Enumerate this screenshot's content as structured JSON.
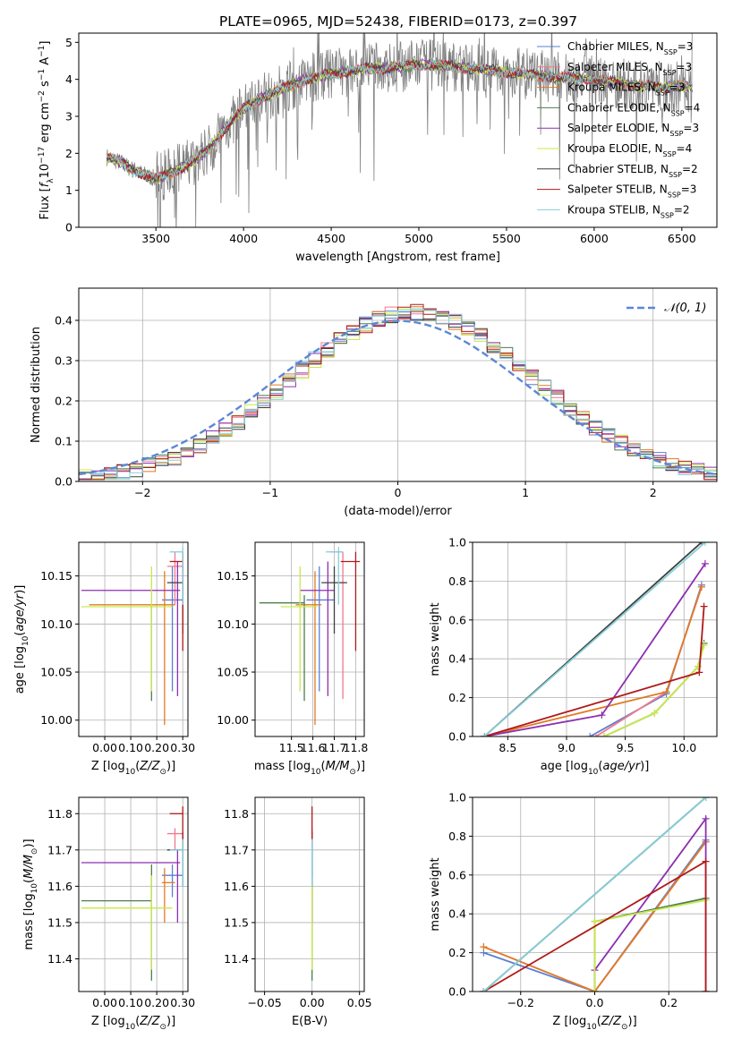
{
  "title": "PLATE=0965, MJD=52438, FIBERID=0173, z=0.397",
  "colors": {
    "chabrier_miles": "#5b7fd0",
    "salpeter_miles": "#ee7a8e",
    "kroupa_miles": "#e07b24",
    "chabrier_elodie": "#4f7d4f",
    "salpeter_elodie": "#8e2fb0",
    "kroupa_elodie": "#c8e94a",
    "chabrier_stelib": "#3f3f3f",
    "salpeter_stelib": "#b01a1a",
    "kroupa_stelib": "#86d0d9",
    "normal_curve": "#5b87d6"
  },
  "legend_spectrum": [
    {
      "label": "Chabrier MILES, N",
      "sub": "SSP",
      "suffix": "=3",
      "color": "#5b7fd0"
    },
    {
      "label": "Salpeter MILES, N",
      "sub": "SSP",
      "suffix": "=3",
      "color": "#ee7a8e"
    },
    {
      "label": "Kroupa MILES, N",
      "sub": "SSP",
      "suffix": "=3",
      "color": "#e07b24"
    },
    {
      "label": "Chabrier ELODIE, N",
      "sub": "SSP",
      "suffix": "=4",
      "color": "#4f7d4f"
    },
    {
      "label": "Salpeter ELODIE, N",
      "sub": "SSP",
      "suffix": "=3",
      "color": "#8e2fb0"
    },
    {
      "label": "Kroupa ELODIE, N",
      "sub": "SSP",
      "suffix": "=4",
      "color": "#c8e94a"
    },
    {
      "label": "Chabrier STELIB, N",
      "sub": "SSP",
      "suffix": "=2",
      "color": "#3f3f3f"
    },
    {
      "label": "Salpeter STELIB, N",
      "sub": "SSP",
      "suffix": "=3",
      "color": "#b01a1a"
    },
    {
      "label": "Kroupa STELIB, N",
      "sub": "SSP",
      "suffix": "=2",
      "color": "#86d0d9"
    }
  ],
  "legend_hist": "𝒩(0, 1)",
  "chart_data": [
    {
      "id": "spectrum",
      "type": "line",
      "xlabel": "wavelength [Angstrom, rest frame]",
      "ylabel": "Flux [f_λ 10^-17 erg cm^-2 s^-1 A^-1]",
      "xlim": [
        3060,
        6700
      ],
      "ylim": [
        0,
        5.25
      ],
      "xticks": [
        3500,
        4000,
        4500,
        5000,
        5500,
        6000,
        6500
      ],
      "yticks": [
        0,
        1,
        2,
        3,
        4,
        5
      ],
      "grid": false,
      "continuum": {
        "x": [
          3220,
          3300,
          3350,
          3420,
          3500,
          3600,
          3700,
          3800,
          3900,
          4000,
          4100,
          4200,
          4300,
          4400,
          4500,
          4600,
          4700,
          4800,
          4900,
          5000,
          5200,
          5400,
          5600,
          5800,
          6000,
          6200,
          6400,
          6550
        ],
        "y": [
          1.9,
          1.75,
          1.6,
          1.45,
          1.3,
          1.5,
          1.75,
          2.1,
          2.7,
          3.2,
          3.5,
          3.7,
          3.9,
          4.05,
          4.15,
          4.2,
          4.3,
          4.3,
          4.35,
          4.4,
          4.35,
          4.25,
          4.15,
          4.05,
          4.0,
          3.85,
          3.8,
          3.8
        ]
      }
    },
    {
      "id": "residuals",
      "type": "step",
      "xlabel": "(data-model)/error",
      "ylabel": "Normed distribution",
      "xlim": [
        -2.5,
        2.5
      ],
      "ylim": [
        0,
        0.48
      ],
      "xticks": [
        -2,
        -1,
        0,
        1,
        2
      ],
      "yticks": [
        0.0,
        0.1,
        0.2,
        0.3,
        0.4
      ],
      "grid": true,
      "bin_width": 0.1,
      "curve": "normal(0,1)"
    },
    {
      "id": "age_vs_Z",
      "type": "errorbar",
      "xlabel": "Z [log10(Z/Z⊙)]",
      "ylabel": "age [log10(age/yr)]",
      "xlim": [
        -0.1,
        0.32
      ],
      "ylim": [
        9.983,
        10.185
      ],
      "xticks": [
        0.0,
        0.1,
        0.2,
        0.3
      ],
      "yticks": [
        10.0,
        10.05,
        10.1,
        10.15
      ],
      "grid": true,
      "points": [
        {
          "model": "chabrier_miles",
          "x": 0.26,
          "xlo": 0.22,
          "xhi": 0.3,
          "y": 10.125,
          "ylo": 10.03,
          "yhi": 10.16
        },
        {
          "model": "salpeter_miles",
          "x": 0.27,
          "xlo": 0.24,
          "xhi": 0.3,
          "y": 10.16,
          "ylo": 10.12,
          "yhi": 10.175
        },
        {
          "model": "kroupa_miles",
          "x": 0.23,
          "xlo": -0.06,
          "xhi": 0.27,
          "y": 10.12,
          "ylo": 9.995,
          "yhi": 10.155
        },
        {
          "model": "chabrier_elodie",
          "x": 0.18,
          "xlo": 0.18,
          "xhi": 0.18,
          "y": 10.11,
          "ylo": 10.02,
          "yhi": 10.12
        },
        {
          "model": "salpeter_elodie",
          "x": 0.28,
          "xlo": -0.09,
          "xhi": 0.29,
          "y": 10.135,
          "ylo": 10.025,
          "yhi": 10.165
        },
        {
          "model": "kroupa_elodie",
          "x": 0.18,
          "xlo": -0.09,
          "xhi": 0.26,
          "y": 10.118,
          "ylo": 10.03,
          "yhi": 10.16
        },
        {
          "model": "chabrier_stelib",
          "x": 0.3,
          "xlo": 0.24,
          "xhi": 0.3,
          "y": 10.143,
          "ylo": 10.09,
          "yhi": 10.16
        },
        {
          "model": "salpeter_stelib",
          "x": 0.3,
          "xlo": 0.25,
          "xhi": 0.3,
          "y": 10.165,
          "ylo": 10.072,
          "yhi": 10.175
        },
        {
          "model": "kroupa_stelib",
          "x": 0.3,
          "xlo": 0.25,
          "xhi": 0.3,
          "y": 10.175,
          "ylo": 10.12,
          "yhi": 10.18
        }
      ]
    },
    {
      "id": "age_vs_mass",
      "type": "errorbar",
      "xlabel": "mass [log10(M/M⊙)]",
      "ylabel": "",
      "xlim": [
        11.33,
        11.84
      ],
      "ylim": [
        9.983,
        10.185
      ],
      "xticks": [
        11.5,
        11.6,
        11.7,
        11.8
      ],
      "yticks": [
        10.0,
        10.05,
        10.1,
        10.15
      ],
      "grid": true,
      "points": [
        {
          "model": "chabrier_miles",
          "x": 11.63,
          "xlo": 11.57,
          "xhi": 11.7,
          "y": 10.125,
          "ylo": 10.03,
          "yhi": 10.16
        },
        {
          "model": "salpeter_miles",
          "x": 11.74,
          "xlo": 11.68,
          "xhi": 11.74,
          "y": 10.175,
          "ylo": 10.022,
          "yhi": 10.175
        },
        {
          "model": "kroupa_miles",
          "x": 11.61,
          "xlo": 11.52,
          "xhi": 11.64,
          "y": 10.12,
          "ylo": 9.995,
          "yhi": 10.155
        },
        {
          "model": "chabrier_elodie",
          "x": 11.56,
          "xlo": 11.35,
          "xhi": 11.56,
          "y": 10.122,
          "ylo": 10.02,
          "yhi": 10.13
        },
        {
          "model": "salpeter_elodie",
          "x": 11.67,
          "xlo": 11.54,
          "xhi": 11.7,
          "y": 10.135,
          "ylo": 10.025,
          "yhi": 10.165
        },
        {
          "model": "kroupa_elodie",
          "x": 11.54,
          "xlo": 11.45,
          "xhi": 11.62,
          "y": 10.118,
          "ylo": 10.03,
          "yhi": 10.16
        },
        {
          "model": "chabrier_stelib",
          "x": 11.7,
          "xlo": 11.64,
          "xhi": 11.76,
          "y": 10.143,
          "ylo": 10.09,
          "yhi": 10.16
        },
        {
          "model": "salpeter_stelib",
          "x": 11.8,
          "xlo": 11.73,
          "xhi": 11.82,
          "y": 10.165,
          "ylo": 10.072,
          "yhi": 10.175
        },
        {
          "model": "kroupa_stelib",
          "x": 11.72,
          "xlo": 11.66,
          "xhi": 11.74,
          "y": 10.175,
          "ylo": 10.12,
          "yhi": 10.18
        }
      ]
    },
    {
      "id": "weight_vs_age",
      "type": "line",
      "xlabel": "age [log10(age/yr)]",
      "ylabel": "mass weight",
      "xlim": [
        8.2,
        10.28
      ],
      "ylim": [
        0,
        1.0
      ],
      "xticks": [
        8.5,
        9.0,
        9.5,
        10.0
      ],
      "yticks": [
        0.0,
        0.2,
        0.4,
        0.6,
        0.8,
        1.0
      ],
      "grid": true,
      "series": [
        {
          "model": "chabrier_miles",
          "x": [
            9.2,
            9.85,
            10.15
          ],
          "y": [
            0.0,
            0.22,
            0.78
          ]
        },
        {
          "model": "salpeter_miles",
          "x": [
            9.25,
            9.85,
            10.15
          ],
          "y": [
            0.0,
            0.23,
            0.77
          ]
        },
        {
          "model": "kroupa_miles",
          "x": [
            8.3,
            9.85,
            10.15
          ],
          "y": [
            0.0,
            0.23,
            0.77
          ]
        },
        {
          "model": "chabrier_elodie",
          "x": [
            9.32,
            9.75,
            10.12,
            10.17
          ],
          "y": [
            0.0,
            0.12,
            0.36,
            0.48
          ]
        },
        {
          "model": "salpeter_elodie",
          "x": [
            8.3,
            9.3,
            10.18
          ],
          "y": [
            0.0,
            0.11,
            0.89
          ]
        },
        {
          "model": "kroupa_elodie",
          "x": [
            9.32,
            9.75,
            10.12,
            10.17
          ],
          "y": [
            0.0,
            0.12,
            0.36,
            0.47
          ]
        },
        {
          "model": "chabrier_stelib",
          "x": [
            8.3,
            10.15
          ],
          "y": [
            0.0,
            1.0
          ]
        },
        {
          "model": "salpeter_stelib",
          "x": [
            8.3,
            10.13,
            10.17
          ],
          "y": [
            0.0,
            0.33,
            0.67
          ]
        },
        {
          "model": "kroupa_stelib",
          "x": [
            8.3,
            10.18
          ],
          "y": [
            0.0,
            1.0
          ]
        }
      ]
    },
    {
      "id": "mass_vs_Z",
      "type": "errorbar",
      "xlabel": "Z [log10(Z/Z⊙)]",
      "ylabel": "mass [log10(M/M⊙)]",
      "xlim": [
        -0.1,
        0.32
      ],
      "ylim": [
        11.31,
        11.845
      ],
      "xticks": [
        0.0,
        0.1,
        0.2,
        0.3
      ],
      "yticks": [
        11.4,
        11.5,
        11.6,
        11.7,
        11.8
      ],
      "grid": true,
      "points": [
        {
          "model": "chabrier_miles",
          "x": 0.26,
          "xlo": 0.22,
          "xhi": 0.3,
          "y": 11.63,
          "ylo": 11.57,
          "yhi": 11.66
        },
        {
          "model": "salpeter_miles",
          "x": 0.27,
          "xlo": 0.24,
          "xhi": 0.3,
          "y": 11.745,
          "ylo": 11.7,
          "yhi": 11.76
        },
        {
          "model": "kroupa_miles",
          "x": 0.23,
          "xlo": 0.22,
          "xhi": 0.27,
          "y": 11.61,
          "ylo": 11.5,
          "yhi": 11.65
        },
        {
          "model": "chabrier_elodie",
          "x": 0.18,
          "xlo": -0.09,
          "xhi": 0.18,
          "y": 11.56,
          "ylo": 11.34,
          "yhi": 11.66
        },
        {
          "model": "salpeter_elodie",
          "x": 0.28,
          "xlo": -0.09,
          "xhi": 0.29,
          "y": 11.665,
          "ylo": 11.5,
          "yhi": 11.7
        },
        {
          "model": "kroupa_elodie",
          "x": 0.18,
          "xlo": -0.09,
          "xhi": 0.26,
          "y": 11.54,
          "ylo": 11.37,
          "yhi": 11.63
        },
        {
          "model": "chabrier_stelib",
          "x": 0.3,
          "xlo": 0.24,
          "xhi": 0.3,
          "y": 11.7,
          "ylo": 11.6,
          "yhi": 11.75
        },
        {
          "model": "salpeter_stelib",
          "x": 0.3,
          "xlo": 0.25,
          "xhi": 0.3,
          "y": 11.8,
          "ylo": 11.72,
          "yhi": 11.82
        },
        {
          "model": "kroupa_stelib",
          "x": 0.3,
          "xlo": 0.25,
          "xhi": 0.3,
          "y": 11.7,
          "ylo": 11.6,
          "yhi": 11.73
        }
      ]
    },
    {
      "id": "mass_vs_ebv",
      "type": "errorbar",
      "xlabel": "E(B-V)",
      "ylabel": "",
      "xlim": [
        -0.06,
        0.055
      ],
      "ylim": [
        11.31,
        11.845
      ],
      "xticks": [
        -0.05,
        0.0,
        0.05
      ],
      "yticks": [
        11.4,
        11.5,
        11.6,
        11.7,
        11.8
      ],
      "grid": true,
      "points": [
        {
          "model": "chabrier_miles",
          "x": 0.0,
          "xlo": 0.0,
          "xhi": 0.0,
          "y": 11.63,
          "ylo": 11.57,
          "yhi": 11.66
        },
        {
          "model": "salpeter_miles",
          "x": 0.0,
          "xlo": 0.0,
          "xhi": 0.0,
          "y": 11.745,
          "ylo": 11.7,
          "yhi": 11.76
        },
        {
          "model": "kroupa_miles",
          "x": 0.0,
          "xlo": 0.0,
          "xhi": 0.0,
          "y": 11.61,
          "ylo": 11.5,
          "yhi": 11.65
        },
        {
          "model": "chabrier_elodie",
          "x": 0.0,
          "xlo": 0.0,
          "xhi": 0.0,
          "y": 11.56,
          "ylo": 11.34,
          "yhi": 11.66
        },
        {
          "model": "salpeter_elodie",
          "x": 0.0,
          "xlo": 0.0,
          "xhi": 0.0,
          "y": 11.665,
          "ylo": 11.5,
          "yhi": 11.7
        },
        {
          "model": "kroupa_elodie",
          "x": 0.0,
          "xlo": 0.0,
          "xhi": 0.0,
          "y": 11.54,
          "ylo": 11.37,
          "yhi": 11.63
        },
        {
          "model": "chabrier_stelib",
          "x": 0.0,
          "xlo": 0.0,
          "xhi": 0.0,
          "y": 11.7,
          "ylo": 11.6,
          "yhi": 11.75
        },
        {
          "model": "salpeter_stelib",
          "x": 0.0,
          "xlo": 0.0,
          "xhi": 0.0,
          "y": 11.8,
          "ylo": 11.72,
          "yhi": 11.82
        },
        {
          "model": "kroupa_stelib",
          "x": 0.0,
          "xlo": 0.0,
          "xhi": 0.0,
          "y": 11.7,
          "ylo": 11.6,
          "yhi": 11.73
        }
      ]
    },
    {
      "id": "weight_vs_Z",
      "type": "line",
      "xlabel": "Z [log10(Z/Z⊙)]",
      "ylabel": "mass weight",
      "xlim": [
        -0.33,
        0.33
      ],
      "ylim": [
        0,
        1.0
      ],
      "xticks": [
        -0.2,
        0.0,
        0.2
      ],
      "yticks": [
        0.0,
        0.2,
        0.4,
        0.6,
        0.8,
        1.0
      ],
      "grid": true,
      "series": [
        {
          "model": "chabrier_miles",
          "x": [
            -0.3,
            0.0,
            0.3
          ],
          "y": [
            0.2,
            0.0,
            0.78
          ]
        },
        {
          "model": "salpeter_miles",
          "x": [
            -0.3,
            0.0,
            0.3
          ],
          "y": [
            0.23,
            0.0,
            0.77
          ]
        },
        {
          "model": "kroupa_miles",
          "x": [
            -0.3,
            0.0,
            0.3
          ],
          "y": [
            0.23,
            0.0,
            0.77
          ]
        },
        {
          "model": "chabrier_elodie",
          "x": [
            0.0,
            0.0,
            0.3
          ],
          "y": [
            0.0,
            0.36,
            0.48
          ]
        },
        {
          "model": "salpeter_elodie",
          "x": [
            0.0,
            0.0,
            0.3,
            0.3
          ],
          "y": [
            0.0,
            0.11,
            0.89,
            0.0
          ]
        },
        {
          "model": "kroupa_elodie",
          "x": [
            0.0,
            0.0,
            0.3
          ],
          "y": [
            0.0,
            0.36,
            0.47
          ]
        },
        {
          "model": "chabrier_stelib",
          "x": [
            -0.3,
            0.3
          ],
          "y": [
            0.0,
            1.0
          ]
        },
        {
          "model": "salpeter_stelib",
          "x": [
            -0.3,
            0.3,
            0.3
          ],
          "y": [
            0.0,
            0.67,
            0.0
          ]
        },
        {
          "model": "kroupa_stelib",
          "x": [
            -0.3,
            0.3
          ],
          "y": [
            0.0,
            1.0
          ]
        }
      ]
    }
  ]
}
